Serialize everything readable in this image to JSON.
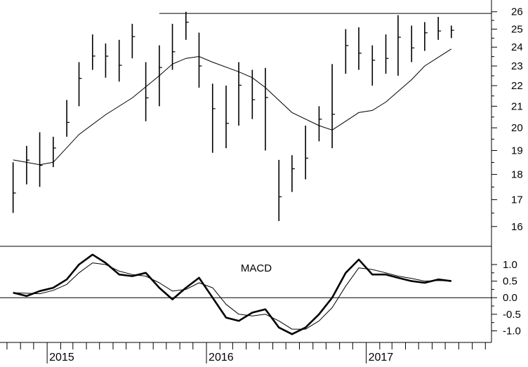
{
  "chart_data": [
    {
      "type": "ohlc",
      "panel": "price",
      "y_scale": "log",
      "ylim": [
        15.3,
        26.7
      ],
      "yticks": [
        "16",
        "17",
        "18",
        "19",
        "20",
        "21",
        "22",
        "23",
        "24",
        "25",
        "26"
      ],
      "grid": false,
      "resistance_level": 25.9,
      "resistance_start": "2015-09",
      "series": [
        {
          "kind": "price_bars",
          "points": [
            {
              "x": "2014-10",
              "high": 18.5,
              "low": 16.5
            },
            {
              "x": "2014-11",
              "high": 19.2,
              "low": 17.6
            },
            {
              "x": "2014-12",
              "high": 19.8,
              "low": 17.5
            },
            {
              "x": "2015-01",
              "high": 19.6,
              "low": 18.3
            },
            {
              "x": "2015-02",
              "high": 21.3,
              "low": 19.6
            },
            {
              "x": "2015-03",
              "high": 23.2,
              "low": 21.0
            },
            {
              "x": "2015-04",
              "high": 24.7,
              "low": 22.8
            },
            {
              "x": "2015-05",
              "high": 24.2,
              "low": 22.4
            },
            {
              "x": "2015-06",
              "high": 24.4,
              "low": 22.2
            },
            {
              "x": "2015-07",
              "high": 25.3,
              "low": 23.4
            },
            {
              "x": "2015-08",
              "high": 23.2,
              "low": 20.3
            },
            {
              "x": "2015-09",
              "high": 24.1,
              "low": 21.0
            },
            {
              "x": "2015-10",
              "high": 25.3,
              "low": 22.8
            },
            {
              "x": "2015-11",
              "high": 26.0,
              "low": 24.4
            },
            {
              "x": "2015-12",
              "high": 24.8,
              "low": 21.9
            },
            {
              "x": "2016-01",
              "high": 22.1,
              "low": 18.9
            },
            {
              "x": "2016-02",
              "high": 22.0,
              "low": 19.1
            },
            {
              "x": "2016-03",
              "high": 23.2,
              "low": 20.1
            },
            {
              "x": "2016-04",
              "high": 22.8,
              "low": 20.4
            },
            {
              "x": "2016-05",
              "high": 22.9,
              "low": 19.0
            },
            {
              "x": "2016-06",
              "high": 18.6,
              "low": 16.2
            },
            {
              "x": "2016-07",
              "high": 18.8,
              "low": 17.3
            },
            {
              "x": "2016-08",
              "high": 20.1,
              "low": 17.8
            },
            {
              "x": "2016-09",
              "high": 21.0,
              "low": 19.4
            },
            {
              "x": "2016-10",
              "high": 23.1,
              "low": 19.1
            },
            {
              "x": "2016-11",
              "high": 25.0,
              "low": 22.6
            },
            {
              "x": "2016-12",
              "high": 25.1,
              "low": 22.8
            },
            {
              "x": "2017-01",
              "high": 24.1,
              "low": 22.0
            },
            {
              "x": "2017-02",
              "high": 24.7,
              "low": 22.6
            },
            {
              "x": "2017-03",
              "high": 25.8,
              "low": 22.5
            },
            {
              "x": "2017-04",
              "high": 25.2,
              "low": 23.2
            },
            {
              "x": "2017-05",
              "high": 25.4,
              "low": 23.8
            },
            {
              "x": "2017-06",
              "high": 25.7,
              "low": 24.4
            },
            {
              "x": "2017-07",
              "high": 25.2,
              "low": 24.5
            }
          ]
        },
        {
          "kind": "moving_average",
          "points": [
            {
              "x": "2014-10",
              "y": 18.6
            },
            {
              "x": "2014-12",
              "y": 18.4
            },
            {
              "x": "2015-01",
              "y": 18.5
            },
            {
              "x": "2015-03",
              "y": 19.7
            },
            {
              "x": "2015-05",
              "y": 20.6
            },
            {
              "x": "2015-07",
              "y": 21.4
            },
            {
              "x": "2015-09",
              "y": 22.5
            },
            {
              "x": "2015-10",
              "y": 23.1
            },
            {
              "x": "2015-11",
              "y": 23.4
            },
            {
              "x": "2015-12",
              "y": 23.5
            },
            {
              "x": "2016-01",
              "y": 23.2
            },
            {
              "x": "2016-03",
              "y": 22.7
            },
            {
              "x": "2016-04",
              "y": 22.4
            },
            {
              "x": "2016-05",
              "y": 21.9
            },
            {
              "x": "2016-07",
              "y": 20.7
            },
            {
              "x": "2016-09",
              "y": 20.1
            },
            {
              "x": "2016-10",
              "y": 19.9
            },
            {
              "x": "2016-11",
              "y": 20.3
            },
            {
              "x": "2016-12",
              "y": 20.7
            },
            {
              "x": "2017-01",
              "y": 20.8
            },
            {
              "x": "2017-02",
              "y": 21.2
            },
            {
              "x": "2017-04",
              "y": 22.3
            },
            {
              "x": "2017-05",
              "y": 23.0
            },
            {
              "x": "2017-07",
              "y": 23.9
            }
          ]
        }
      ]
    },
    {
      "type": "line",
      "panel": "macd",
      "title": "MACD",
      "ylim": [
        -1.35,
        1.55
      ],
      "yticks": [
        "-1.0",
        "-0.5",
        "0.0",
        "0.5",
        "1.0"
      ],
      "zero_line": true,
      "grid": false,
      "series": [
        {
          "kind": "macd",
          "points": [
            {
              "x": "2014-10",
              "y": 0.15
            },
            {
              "x": "2014-11",
              "y": 0.05
            },
            {
              "x": "2014-12",
              "y": 0.2
            },
            {
              "x": "2015-01",
              "y": 0.3
            },
            {
              "x": "2015-02",
              "y": 0.55
            },
            {
              "x": "2015-03",
              "y": 1.0
            },
            {
              "x": "2015-04",
              "y": 1.3
            },
            {
              "x": "2015-05",
              "y": 1.05
            },
            {
              "x": "2015-06",
              "y": 0.7
            },
            {
              "x": "2015-07",
              "y": 0.65
            },
            {
              "x": "2015-08",
              "y": 0.75
            },
            {
              "x": "2015-09",
              "y": 0.3
            },
            {
              "x": "2015-10",
              "y": -0.05
            },
            {
              "x": "2015-11",
              "y": 0.3
            },
            {
              "x": "2015-12",
              "y": 0.6
            },
            {
              "x": "2016-01",
              "y": 0.0
            },
            {
              "x": "2016-02",
              "y": -0.6
            },
            {
              "x": "2016-03",
              "y": -0.7
            },
            {
              "x": "2016-04",
              "y": -0.45
            },
            {
              "x": "2016-05",
              "y": -0.35
            },
            {
              "x": "2016-06",
              "y": -0.9
            },
            {
              "x": "2016-07",
              "y": -1.1
            },
            {
              "x": "2016-08",
              "y": -0.9
            },
            {
              "x": "2016-09",
              "y": -0.5
            },
            {
              "x": "2016-10",
              "y": 0.0
            },
            {
              "x": "2016-11",
              "y": 0.75
            },
            {
              "x": "2016-12",
              "y": 1.15
            },
            {
              "x": "2017-01",
              "y": 0.7
            },
            {
              "x": "2017-02",
              "y": 0.7
            },
            {
              "x": "2017-03",
              "y": 0.6
            },
            {
              "x": "2017-04",
              "y": 0.5
            },
            {
              "x": "2017-05",
              "y": 0.45
            },
            {
              "x": "2017-06",
              "y": 0.55
            },
            {
              "x": "2017-07",
              "y": 0.5
            }
          ]
        },
        {
          "kind": "signal",
          "points": [
            {
              "x": "2014-10",
              "y": 0.15
            },
            {
              "x": "2014-12",
              "y": 0.12
            },
            {
              "x": "2015-01",
              "y": 0.22
            },
            {
              "x": "2015-02",
              "y": 0.4
            },
            {
              "x": "2015-03",
              "y": 0.75
            },
            {
              "x": "2015-04",
              "y": 1.05
            },
            {
              "x": "2015-05",
              "y": 1.0
            },
            {
              "x": "2015-06",
              "y": 0.8
            },
            {
              "x": "2015-07",
              "y": 0.7
            },
            {
              "x": "2015-08",
              "y": 0.65
            },
            {
              "x": "2015-09",
              "y": 0.45
            },
            {
              "x": "2015-10",
              "y": 0.2
            },
            {
              "x": "2015-11",
              "y": 0.25
            },
            {
              "x": "2015-12",
              "y": 0.45
            },
            {
              "x": "2016-01",
              "y": 0.3
            },
            {
              "x": "2016-02",
              "y": -0.2
            },
            {
              "x": "2016-03",
              "y": -0.5
            },
            {
              "x": "2016-04",
              "y": -0.55
            },
            {
              "x": "2016-05",
              "y": -0.5
            },
            {
              "x": "2016-06",
              "y": -0.7
            },
            {
              "x": "2016-07",
              "y": -0.95
            },
            {
              "x": "2016-08",
              "y": -0.95
            },
            {
              "x": "2016-09",
              "y": -0.7
            },
            {
              "x": "2016-10",
              "y": -0.3
            },
            {
              "x": "2016-11",
              "y": 0.35
            },
            {
              "x": "2016-12",
              "y": 0.9
            },
            {
              "x": "2017-01",
              "y": 0.85
            },
            {
              "x": "2017-02",
              "y": 0.75
            },
            {
              "x": "2017-03",
              "y": 0.65
            },
            {
              "x": "2017-04",
              "y": 0.58
            },
            {
              "x": "2017-05",
              "y": 0.5
            },
            {
              "x": "2017-06",
              "y": 0.52
            },
            {
              "x": "2017-07",
              "y": 0.5
            }
          ]
        }
      ]
    }
  ],
  "x_axis": {
    "range": [
      "2014-09-15",
      "2017-10-15"
    ],
    "year_labels": [
      {
        "label": "2015",
        "x": "2015-01"
      },
      {
        "label": "2016",
        "x": "2016-01"
      },
      {
        "label": "2017",
        "x": "2017-01"
      }
    ]
  },
  "colors": {
    "ink": "#000000",
    "background": "#ffffff"
  }
}
